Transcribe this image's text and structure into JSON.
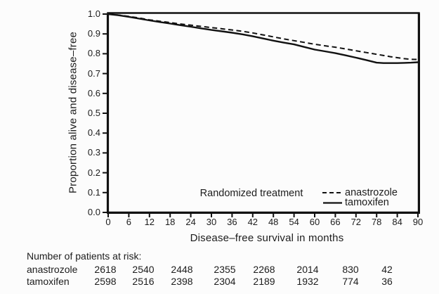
{
  "chart_data": {
    "type": "line",
    "title": "",
    "xlabel": "Disease–free survival in months",
    "ylabel": "Proportion alive and disease–free",
    "legend_title": "Randomized treatment",
    "legend_position": "inside lower right",
    "grid": false,
    "xlim": [
      0,
      91
    ],
    "ylim": [
      0.0,
      1.0
    ],
    "x_ticks": [
      0,
      6,
      12,
      18,
      24,
      30,
      36,
      42,
      48,
      54,
      60,
      66,
      72,
      78,
      84,
      90
    ],
    "y_ticks": [
      0.0,
      0.1,
      0.2,
      0.3,
      0.4,
      0.5,
      0.6,
      0.7,
      0.8,
      0.9,
      1.0
    ],
    "x": [
      0,
      3,
      6,
      9,
      12,
      15,
      18,
      21,
      24,
      27,
      30,
      33,
      36,
      39,
      42,
      45,
      48,
      51,
      54,
      57,
      60,
      63,
      66,
      69,
      72,
      75,
      78,
      80,
      82,
      84,
      86,
      88,
      90
    ],
    "series": [
      {
        "name": "anastrozole",
        "line_style": "dashed",
        "values": [
          1.0,
          0.995,
          0.988,
          0.98,
          0.971,
          0.964,
          0.957,
          0.95,
          0.944,
          0.938,
          0.932,
          0.926,
          0.92,
          0.913,
          0.905,
          0.895,
          0.885,
          0.875,
          0.866,
          0.857,
          0.848,
          0.84,
          0.833,
          0.824,
          0.815,
          0.806,
          0.797,
          0.791,
          0.785,
          0.78,
          0.775,
          0.772,
          0.771
        ]
      },
      {
        "name": "tamoxifen",
        "line_style": "solid",
        "values": [
          1.0,
          0.994,
          0.986,
          0.977,
          0.968,
          0.96,
          0.952,
          0.944,
          0.936,
          0.928,
          0.92,
          0.913,
          0.906,
          0.898,
          0.888,
          0.877,
          0.866,
          0.856,
          0.847,
          0.834,
          0.821,
          0.812,
          0.803,
          0.792,
          0.78,
          0.768,
          0.755,
          0.753,
          0.753,
          0.753,
          0.754,
          0.755,
          0.757
        ]
      }
    ]
  },
  "risk_table": {
    "heading": "Number of patients at risk:",
    "rows": [
      {
        "label": "anastrozole",
        "counts": [
          "2618",
          "2540",
          "2448",
          "2355",
          "2268",
          "2014",
          "830",
          "42"
        ]
      },
      {
        "label": "tamoxifen",
        "counts": [
          "2598",
          "2516",
          "2398",
          "2304",
          "2189",
          "1932",
          "774",
          "36"
        ]
      }
    ]
  },
  "colors": {
    "line": "#111111",
    "text": "#1c1c1c",
    "background": "#fcfcfc"
  }
}
